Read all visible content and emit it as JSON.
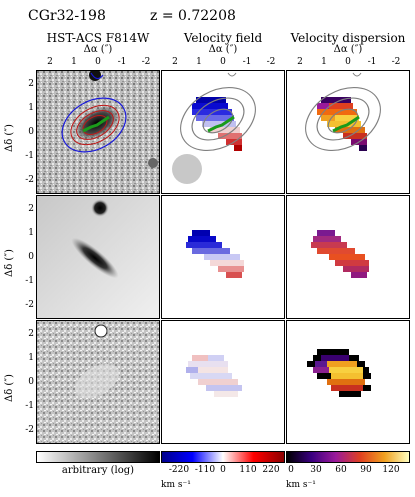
{
  "header": {
    "object": "CGr32-198",
    "redshift": "z = 0.72208"
  },
  "columns": [
    {
      "title": "HST-ACS F814W"
    },
    {
      "title": "Velocity field"
    },
    {
      "title": "Velocity dispersion"
    }
  ],
  "x_axis": {
    "label": "Δα (″)",
    "ticks": [
      "2",
      "1",
      "0",
      "-1",
      "-2"
    ]
  },
  "y_axis": {
    "label": "Δδ (″)",
    "ticks": [
      "2",
      "1",
      "0",
      "-1",
      "-2"
    ]
  },
  "colorbars": [
    {
      "label": "arbitrary (log)",
      "ticks": [],
      "unit": ""
    },
    {
      "label": "",
      "ticks": [
        "-220",
        "-110",
        "0",
        "110",
        "220"
      ],
      "unit": "km s⁻¹"
    },
    {
      "label": "",
      "ticks": [
        "0",
        "30",
        "60",
        "90",
        "120"
      ],
      "unit": "km s⁻¹"
    }
  ],
  "colors": {
    "velocity_negative": "#0000cc",
    "velocity_positive": "#cc0000",
    "contour_blue": "#1a1adb",
    "contour_red": "#c01818",
    "contour_green": "#1a9a1a",
    "psf_disk": "#c8c8c8",
    "contour_grey": "#808080"
  }
}
